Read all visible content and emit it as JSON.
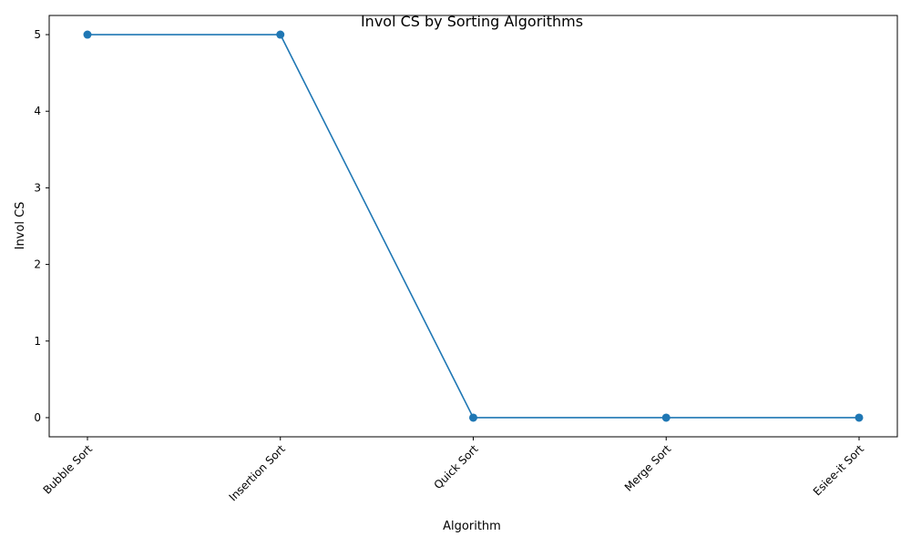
{
  "chart_data": {
    "type": "line",
    "title": "Invol CS by Sorting Algorithms",
    "xlabel": "Algorithm",
    "ylabel": "Invol CS",
    "categories": [
      "Bubble Sort",
      "Insertion Sort",
      "Quick Sort",
      "Merge Sort",
      "Esiee-it Sort"
    ],
    "series": [
      {
        "values": [
          5,
          5,
          0,
          0,
          0
        ]
      }
    ],
    "ylim": [
      -0.25,
      5.25
    ],
    "yticks": [
      0,
      1,
      2,
      3,
      4,
      5
    ],
    "grid": false,
    "legend": "none",
    "line_color": "#1f77b4",
    "marker": "circle"
  }
}
